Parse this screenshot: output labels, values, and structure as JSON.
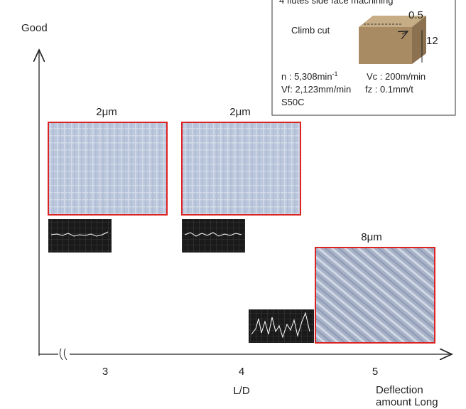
{
  "y_axis": {
    "label": "Good"
  },
  "conditions": {
    "title": "4 flutes side face machining",
    "cut_type": "Climb cut",
    "radial_depth": "0.5",
    "axial_depth": "12",
    "speed": "n : 5,308min",
    "speed_exp": "-1",
    "vc": "Vc : 200m/min",
    "vf": "Vf: 2,123mm/min",
    "fz": "fz : 0.1mm/t",
    "material": "S50C"
  },
  "x_axis": {
    "ticks": [
      "3",
      "4",
      "5"
    ],
    "label": "L/D",
    "note": [
      "Deflection",
      "amount Long"
    ]
  },
  "samples": [
    {
      "roughness": "2μm"
    },
    {
      "roughness": "2μm"
    },
    {
      "roughness": "8μm"
    }
  ]
}
